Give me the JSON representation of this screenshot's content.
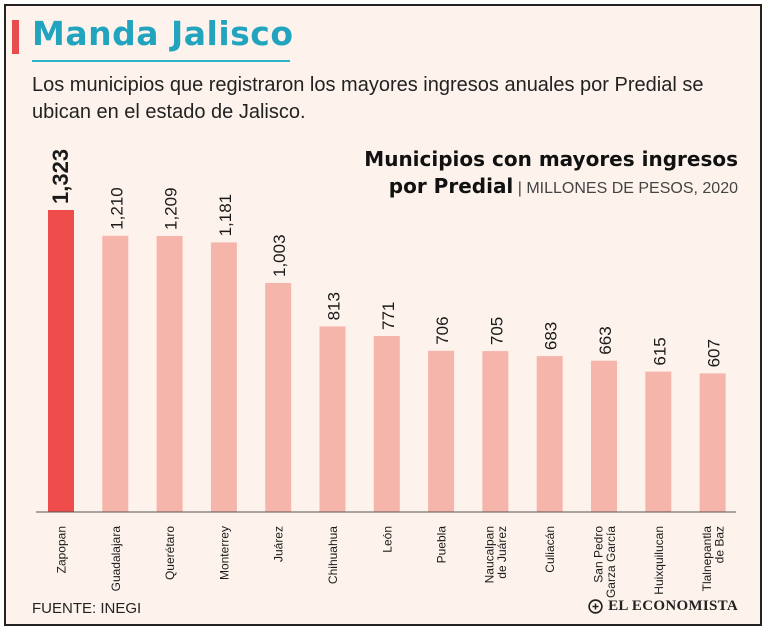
{
  "header": {
    "title": "Manda Jalisco",
    "subtitle": "Los municipios que registraron los mayores ingresos anuales por Predial se ubican en el estado de Jalisco."
  },
  "chart_data": {
    "type": "bar",
    "title_line1": "Municipios con mayores ingresos",
    "title_line2": "por Predial",
    "units": "MILLONES DE PESOS, 2020",
    "categories": [
      [
        "Zapopan"
      ],
      [
        "Guadalajara"
      ],
      [
        "Querétaro"
      ],
      [
        "Monterrey"
      ],
      [
        "Juárez"
      ],
      [
        "Chihuahua"
      ],
      [
        "León"
      ],
      [
        "Puebla"
      ],
      [
        "Naucalpan",
        "de Juárez"
      ],
      [
        "Culiacán"
      ],
      [
        "San Pedro",
        "Garza García"
      ],
      [
        "Huixquilucan"
      ],
      [
        "Tlalnepantla",
        "de Baz"
      ]
    ],
    "values": [
      1323,
      1210,
      1209,
      1181,
      1003,
      813,
      771,
      706,
      705,
      683,
      663,
      615,
      607
    ],
    "value_labels": [
      "1,323",
      "1,210",
      "1,209",
      "1,181",
      "1,003",
      "813",
      "771",
      "706",
      "705",
      "683",
      "663",
      "615",
      "607"
    ],
    "highlight_index": 0,
    "ylim": [
      0,
      1323
    ],
    "colors": {
      "highlight": "#ef4c4c",
      "bar": "#f6b5aa",
      "baseline": "#555555"
    }
  },
  "footer": {
    "source": "FUENTE: INEGI",
    "brand": "EL ECONOMISTA"
  }
}
